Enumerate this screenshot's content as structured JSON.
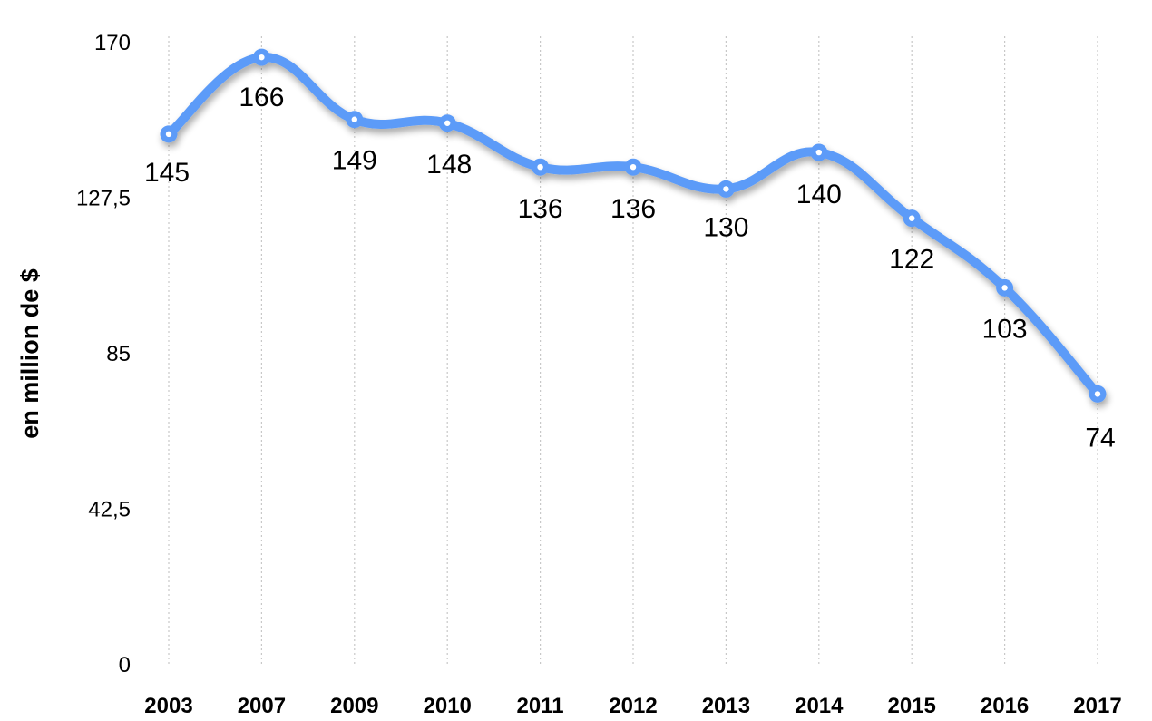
{
  "chart_data": {
    "type": "line",
    "categories": [
      "2003",
      "2007",
      "2009",
      "2010",
      "2011",
      "2012",
      "2013",
      "2014",
      "2015",
      "2016",
      "2017"
    ],
    "series": [
      {
        "values": [
          145,
          166,
          149,
          148,
          136,
          136,
          130,
          140,
          122,
          103,
          74
        ]
      }
    ],
    "data_labels": [
      "145",
      "166",
      "149",
      "148",
      "136",
      "136",
      "130",
      "140",
      "122",
      "103",
      "74"
    ],
    "yticks": [
      0,
      42.5,
      85,
      127.5,
      170
    ],
    "ytick_labels": [
      "0",
      "42,5",
      "85",
      "127,5",
      "170"
    ],
    "ylim": [
      0,
      170
    ],
    "ylabel": "en million de $",
    "xlabel": "",
    "grid": "vertical dotted",
    "line_color": "#5b9bf8",
    "smooth": true
  }
}
